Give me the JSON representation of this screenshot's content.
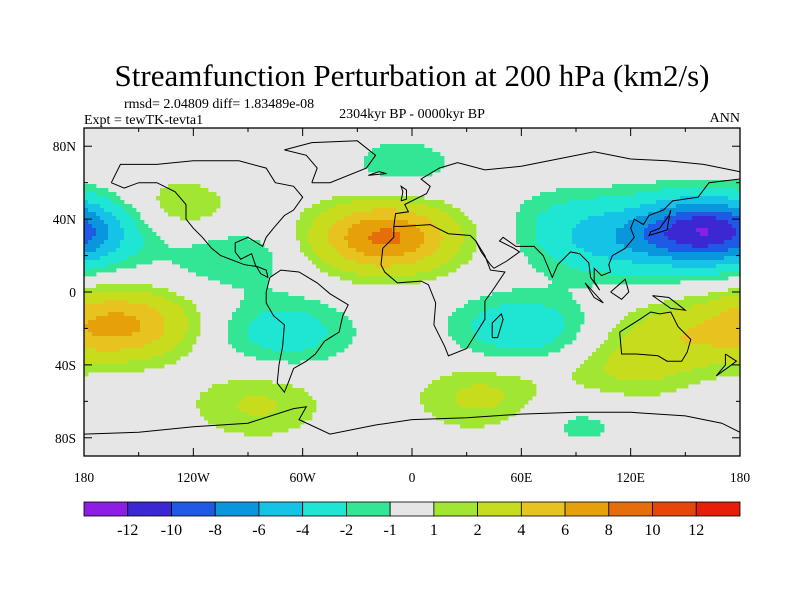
{
  "chart_data": {
    "type": "heatmap",
    "title": "Streamfunction Perturbation at 200 hPa (km2/s)",
    "stats_text": "rmsd= 2.04809 diff= 1.83489e-08",
    "experiment": "Expt = tewTK-tevta1",
    "period": "2304kyr BP - 0000kyr BP",
    "season": "ANN",
    "xlim": [
      -180,
      180
    ],
    "ylim": [
      -90,
      90
    ],
    "x_ticks": [
      {
        "value": -180,
        "label": "180"
      },
      {
        "value": -120,
        "label": "120W"
      },
      {
        "value": -60,
        "label": "60W"
      },
      {
        "value": 0,
        "label": "0"
      },
      {
        "value": 60,
        "label": "60E"
      },
      {
        "value": 120,
        "label": "120E"
      },
      {
        "value": 180,
        "label": "180"
      }
    ],
    "y_ticks": [
      {
        "value": 80,
        "label": "80N"
      },
      {
        "value": 40,
        "label": "40N"
      },
      {
        "value": 0,
        "label": "0"
      },
      {
        "value": -40,
        "label": "40S"
      },
      {
        "value": -80,
        "label": "80S"
      }
    ],
    "contour_levels": [
      -12,
      -10,
      -8,
      -6,
      -4,
      -2,
      -1,
      1,
      2,
      4,
      6,
      8,
      10,
      12
    ],
    "colorbar_colors": [
      "#8c1ee6",
      "#3c28d2",
      "#1e5ae6",
      "#0a96dc",
      "#14c3e6",
      "#1ee6d2",
      "#32e696",
      "#e6e6e6",
      "#a0e632",
      "#c8dc1e",
      "#e6c31e",
      "#e6a00a",
      "#e66e0a",
      "#e6460a",
      "#e61e0a"
    ],
    "anomalies": [
      {
        "lon": -15,
        "lat": 30,
        "value": 8.5
      },
      {
        "lon": 155,
        "lat": 33,
        "value": -9
      },
      {
        "lon": 105,
        "lat": 25,
        "value": -3
      },
      {
        "lon": -180,
        "lat": 34,
        "value": -4
      },
      {
        "lon": -160,
        "lat": -18,
        "value": 6.5
      },
      {
        "lon": 145,
        "lat": -25,
        "value": 3
      },
      {
        "lon": 60,
        "lat": -20,
        "value": -3.5
      },
      {
        "lon": -70,
        "lat": -22,
        "value": -3
      },
      {
        "lon": -100,
        "lat": 20,
        "value": -2
      },
      {
        "lon": -85,
        "lat": -62,
        "value": 2.2
      },
      {
        "lon": 40,
        "lat": -58,
        "value": 2.5
      },
      {
        "lon": 90,
        "lat": 40,
        "value": -2
      },
      {
        "lon": -5,
        "lat": 70,
        "value": -1.5
      },
      {
        "lon": 90,
        "lat": -70,
        "value": -1.5
      },
      {
        "lon": -130,
        "lat": 45,
        "value": 2
      },
      {
        "lon": 115,
        "lat": -45,
        "value": 2
      }
    ]
  }
}
